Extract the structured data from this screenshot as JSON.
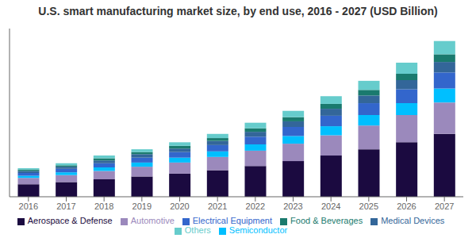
{
  "chart_data": {
    "type": "bar",
    "stacked": true,
    "title": "U.S. smart manufacturing market size, by end use, 2016 - 2027 (USD Billion)",
    "categories": [
      2016,
      2017,
      2018,
      2019,
      2020,
      2021,
      2022,
      2023,
      2024,
      2025,
      2026,
      2027
    ],
    "series": [
      {
        "name": "Aerospace & Defense",
        "color": "#1b0a40",
        "values": [
          1.8,
          2.1,
          2.5,
          2.9,
          3.3,
          3.8,
          4.4,
          5.1,
          5.9,
          6.8,
          7.8,
          9.0
        ]
      },
      {
        "name": "Automotive",
        "color": "#9b89bc",
        "values": [
          0.9,
          1.0,
          1.2,
          1.4,
          1.6,
          1.9,
          2.2,
          2.5,
          2.9,
          3.4,
          3.9,
          4.5
        ]
      },
      {
        "name": "Semiconductor",
        "color": "#00bfff",
        "values": [
          0.3,
          0.4,
          0.5,
          0.6,
          0.7,
          0.8,
          0.9,
          1.1,
          1.3,
          1.5,
          1.7,
          2.0
        ]
      },
      {
        "name": "Electrical Equipment",
        "color": "#3366cc",
        "values": [
          0.4,
          0.5,
          0.6,
          0.7,
          0.8,
          0.9,
          1.1,
          1.3,
          1.5,
          1.7,
          2.0,
          2.3
        ]
      },
      {
        "name": "Medical Devices",
        "color": "#336699",
        "values": [
          0.3,
          0.3,
          0.4,
          0.5,
          0.5,
          0.6,
          0.7,
          0.8,
          1.0,
          1.1,
          1.3,
          1.5
        ]
      },
      {
        "name": "Food & Beverages",
        "color": "#1a7a6e",
        "values": [
          0.2,
          0.2,
          0.3,
          0.3,
          0.4,
          0.4,
          0.5,
          0.6,
          0.7,
          0.8,
          0.9,
          1.1
        ]
      },
      {
        "name": "Others",
        "color": "#66cccc",
        "values": [
          0.2,
          0.3,
          0.4,
          0.4,
          0.5,
          0.6,
          0.8,
          0.9,
          1.1,
          1.3,
          1.6,
          1.9
        ]
      }
    ],
    "ylim": [
      0,
      24.084
    ],
    "tick_labels": "x",
    "grid": false,
    "legend": "bottom"
  }
}
